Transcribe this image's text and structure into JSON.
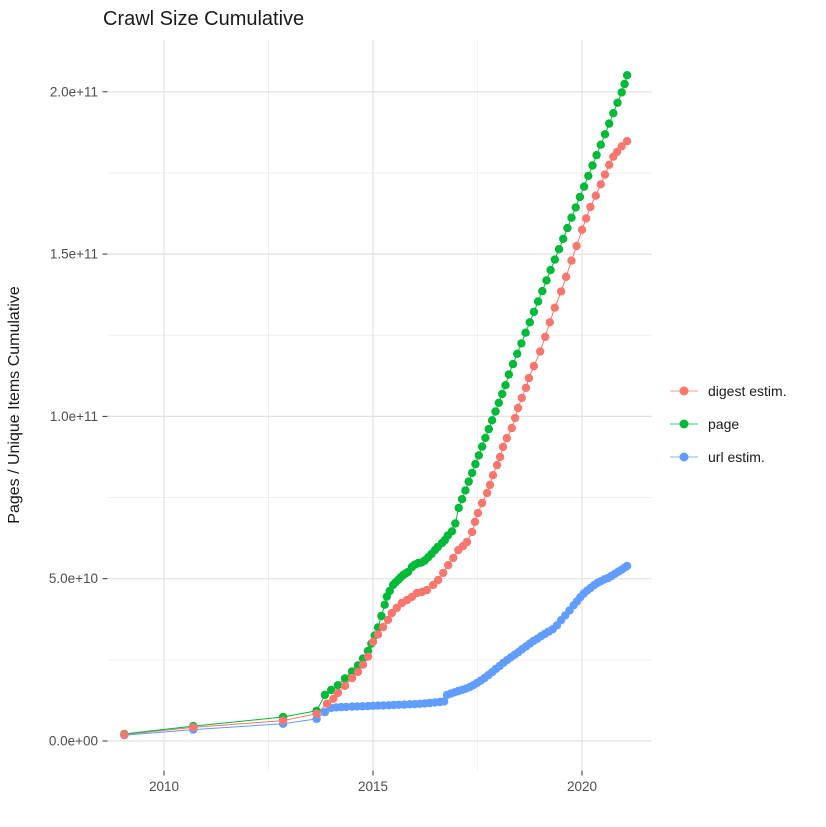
{
  "chart": {
    "title": "Crawl Size Cumulative",
    "y_axis_title": "Pages / Unique Items Cumulative",
    "x_ticks": {
      "major": [
        {
          "label": "2010",
          "year": 2010
        },
        {
          "label": "2015",
          "year": 2015
        },
        {
          "label": "2020",
          "year": 2020
        }
      ],
      "minor_years": [
        2012.5,
        2017.5
      ]
    },
    "y_ticks": {
      "major": [
        {
          "label": "0.0e+00",
          "value_e9": 0
        },
        {
          "label": "5.0e+10",
          "value_e9": 50
        },
        {
          "label": "1.0e+11",
          "value_e9": 100
        },
        {
          "label": "1.5e+11",
          "value_e9": 150
        },
        {
          "label": "2.0e+11",
          "value_e9": 200
        }
      ],
      "minor_values_e9": [
        25,
        75,
        125,
        175
      ]
    },
    "colors": {
      "grid_major": "#e2e2e2",
      "grid_minor": "#efefef",
      "tick_mark": "#333333",
      "tick_label": "#4d4d4d",
      "title_text": "#1a1a1a",
      "legend_text": "#1a1a1a"
    }
  },
  "chart_data": {
    "type": "scatter",
    "note": "cumulative crawl size; x = year, y = items; point values stored as [year, value_in_1e9]",
    "value_unit": "1e9 (billions of pages / unique items)",
    "x_range_years": [
      2008.7,
      2021.7
    ],
    "y_range_e9": [
      0,
      215
    ],
    "legend_position": "right",
    "grid": true,
    "series": [
      {
        "name": "digest estim.",
        "color": "#F8766D",
        "points": [
          [
            2009.05,
            2
          ],
          [
            2010.7,
            4.2
          ],
          [
            2012.85,
            6.3
          ],
          [
            2013.65,
            8.4
          ],
          [
            2013.9,
            11.5
          ],
          [
            2014.05,
            13
          ],
          [
            2014.16,
            14.8
          ],
          [
            2014.33,
            17
          ],
          [
            2014.5,
            19.4
          ],
          [
            2014.64,
            21.3
          ],
          [
            2014.76,
            23.5
          ],
          [
            2014.88,
            26
          ],
          [
            2015.0,
            30.5
          ],
          [
            2015.12,
            32.8
          ],
          [
            2015.24,
            35.1
          ],
          [
            2015.36,
            37.3
          ],
          [
            2015.45,
            39.4
          ],
          [
            2015.57,
            41
          ],
          [
            2015.69,
            42.5
          ],
          [
            2015.81,
            43.4
          ],
          [
            2015.93,
            44.4
          ],
          [
            2016.05,
            45.6
          ],
          [
            2016.17,
            45.9
          ],
          [
            2016.29,
            46.5
          ],
          [
            2016.44,
            48.1
          ],
          [
            2016.56,
            49.6
          ],
          [
            2016.68,
            51.8
          ],
          [
            2016.8,
            54.2
          ],
          [
            2016.92,
            56.4
          ],
          [
            2017.04,
            58.8
          ],
          [
            2017.15,
            60
          ],
          [
            2017.25,
            61.3
          ],
          [
            2017.37,
            64.4
          ],
          [
            2017.44,
            67.5
          ],
          [
            2017.51,
            70.2
          ],
          [
            2017.61,
            73.3
          ],
          [
            2017.73,
            76.4
          ],
          [
            2017.8,
            78.9
          ],
          [
            2017.87,
            81.9
          ],
          [
            2017.97,
            85
          ],
          [
            2018.04,
            87.5
          ],
          [
            2018.11,
            90.6
          ],
          [
            2018.2,
            93.3
          ],
          [
            2018.32,
            96.4
          ],
          [
            2018.4,
            99.5
          ],
          [
            2018.47,
            102.6
          ],
          [
            2018.56,
            105.7
          ],
          [
            2018.66,
            108.8
          ],
          [
            2018.73,
            111.8
          ],
          [
            2018.85,
            115.5
          ],
          [
            2019.0,
            120
          ],
          [
            2019.12,
            124.5
          ],
          [
            2019.23,
            129
          ],
          [
            2019.35,
            133.5
          ],
          [
            2019.5,
            138.5
          ],
          [
            2019.62,
            143
          ],
          [
            2019.75,
            148
          ],
          [
            2019.87,
            152.5
          ],
          [
            2020.0,
            157.5
          ],
          [
            2020.1,
            161
          ],
          [
            2020.2,
            164.5
          ],
          [
            2020.33,
            168
          ],
          [
            2020.45,
            171.5
          ],
          [
            2020.55,
            174.5
          ],
          [
            2020.65,
            177.5
          ],
          [
            2020.75,
            180
          ],
          [
            2020.84,
            181.5
          ],
          [
            2020.95,
            183.2
          ],
          [
            2021.08,
            184.8
          ]
        ]
      },
      {
        "name": "page",
        "color": "#00BA38",
        "points": [
          [
            2009.05,
            2.2
          ],
          [
            2010.7,
            4.6
          ],
          [
            2012.85,
            7.4
          ],
          [
            2013.65,
            9.3
          ],
          [
            2013.85,
            14.2
          ],
          [
            2014.0,
            15.7
          ],
          [
            2014.16,
            17.2
          ],
          [
            2014.33,
            19.3
          ],
          [
            2014.5,
            21.4
          ],
          [
            2014.64,
            23.3
          ],
          [
            2014.76,
            25.4
          ],
          [
            2014.88,
            27.7
          ],
          [
            2014.96,
            30
          ],
          [
            2015.04,
            32.5
          ],
          [
            2015.12,
            35
          ],
          [
            2015.2,
            38.5
          ],
          [
            2015.28,
            42
          ],
          [
            2015.33,
            44.5
          ],
          [
            2015.4,
            46.2
          ],
          [
            2015.48,
            48.1
          ],
          [
            2015.54,
            48.9
          ],
          [
            2015.6,
            49.6
          ],
          [
            2015.66,
            50.4
          ],
          [
            2015.72,
            51.1
          ],
          [
            2015.78,
            51.6
          ],
          [
            2015.84,
            52.1
          ],
          [
            2015.93,
            53.6
          ],
          [
            2016.0,
            54.3
          ],
          [
            2016.08,
            54.8
          ],
          [
            2016.16,
            55
          ],
          [
            2016.24,
            55.6
          ],
          [
            2016.32,
            56.6
          ],
          [
            2016.4,
            57.6
          ],
          [
            2016.48,
            58.8
          ],
          [
            2016.55,
            59.8
          ],
          [
            2016.65,
            61
          ],
          [
            2016.72,
            61.9
          ],
          [
            2016.79,
            63.3
          ],
          [
            2016.89,
            64.6
          ],
          [
            2016.97,
            67
          ],
          [
            2017.05,
            71.8
          ],
          [
            2017.13,
            74.5
          ],
          [
            2017.21,
            77.2
          ],
          [
            2017.29,
            79.9
          ],
          [
            2017.37,
            82.6
          ],
          [
            2017.45,
            85.3
          ],
          [
            2017.53,
            88
          ],
          [
            2017.61,
            90.7
          ],
          [
            2017.69,
            93.4
          ],
          [
            2017.77,
            96.1
          ],
          [
            2017.85,
            98.8
          ],
          [
            2017.93,
            101.5
          ],
          [
            2018.01,
            104.2
          ],
          [
            2018.09,
            106.9
          ],
          [
            2018.17,
            109.6
          ],
          [
            2018.25,
            112.9
          ],
          [
            2018.35,
            116.1
          ],
          [
            2018.45,
            119.3
          ],
          [
            2018.55,
            122.5
          ],
          [
            2018.65,
            125.8
          ],
          [
            2018.75,
            129
          ],
          [
            2018.85,
            132.2
          ],
          [
            2018.95,
            135.4
          ],
          [
            2019.05,
            138.6
          ],
          [
            2019.15,
            141.9
          ],
          [
            2019.25,
            145.1
          ],
          [
            2019.35,
            148.3
          ],
          [
            2019.45,
            151.5
          ],
          [
            2019.55,
            154.7
          ],
          [
            2019.65,
            158
          ],
          [
            2019.75,
            161.2
          ],
          [
            2019.85,
            164.4
          ],
          [
            2019.95,
            167.6
          ],
          [
            2020.05,
            170.8
          ],
          [
            2020.15,
            174.1
          ],
          [
            2020.25,
            177.3
          ],
          [
            2020.35,
            180.5
          ],
          [
            2020.45,
            183.7
          ],
          [
            2020.55,
            186.9
          ],
          [
            2020.65,
            190.2
          ],
          [
            2020.75,
            193.4
          ],
          [
            2020.85,
            196.6
          ],
          [
            2020.95,
            199.8
          ],
          [
            2021.02,
            202.4
          ],
          [
            2021.08,
            205.1
          ]
        ]
      },
      {
        "name": "url estim.",
        "color": "#619CFF",
        "points": [
          [
            2009.05,
            1.8
          ],
          [
            2010.7,
            3.5
          ],
          [
            2012.85,
            5.3
          ],
          [
            2013.65,
            6.8
          ],
          [
            2013.85,
            8.9
          ],
          [
            2014.0,
            10.2
          ],
          [
            2014.12,
            10.35
          ],
          [
            2014.24,
            10.45
          ],
          [
            2014.36,
            10.5
          ],
          [
            2014.5,
            10.6
          ],
          [
            2014.62,
            10.65
          ],
          [
            2014.75,
            10.7
          ],
          [
            2014.88,
            10.75
          ],
          [
            2015.0,
            10.85
          ],
          [
            2015.12,
            10.9
          ],
          [
            2015.25,
            10.95
          ],
          [
            2015.38,
            11
          ],
          [
            2015.5,
            11.1
          ],
          [
            2015.62,
            11.15
          ],
          [
            2015.75,
            11.2
          ],
          [
            2015.88,
            11.3
          ],
          [
            2016.0,
            11.35
          ],
          [
            2016.12,
            11.45
          ],
          [
            2016.24,
            11.55
          ],
          [
            2016.36,
            11.7
          ],
          [
            2016.48,
            11.85
          ],
          [
            2016.6,
            12
          ],
          [
            2016.7,
            12.2
          ],
          [
            2016.77,
            14.2
          ],
          [
            2016.86,
            14.6
          ],
          [
            2016.95,
            15
          ],
          [
            2017.04,
            15.4
          ],
          [
            2017.13,
            15.7
          ],
          [
            2017.22,
            16.1
          ],
          [
            2017.31,
            16.6
          ],
          [
            2017.4,
            17.2
          ],
          [
            2017.49,
            17.9
          ],
          [
            2017.58,
            18.6
          ],
          [
            2017.67,
            19.4
          ],
          [
            2017.76,
            20.3
          ],
          [
            2017.85,
            21.2
          ],
          [
            2017.94,
            22.2
          ],
          [
            2018.03,
            23.1
          ],
          [
            2018.12,
            24.1
          ],
          [
            2018.21,
            25
          ],
          [
            2018.3,
            25.8
          ],
          [
            2018.39,
            26.6
          ],
          [
            2018.48,
            27.4
          ],
          [
            2018.57,
            28.3
          ],
          [
            2018.66,
            29.1
          ],
          [
            2018.75,
            30
          ],
          [
            2018.84,
            30.8
          ],
          [
            2018.93,
            31.5
          ],
          [
            2019.02,
            32.3
          ],
          [
            2019.11,
            33
          ],
          [
            2019.2,
            33.7
          ],
          [
            2019.3,
            34.4
          ],
          [
            2019.4,
            35.6
          ],
          [
            2019.5,
            37.2
          ],
          [
            2019.6,
            38.7
          ],
          [
            2019.7,
            40.2
          ],
          [
            2019.8,
            41.8
          ],
          [
            2019.88,
            43
          ],
          [
            2019.96,
            44.3
          ],
          [
            2020.04,
            45.4
          ],
          [
            2020.12,
            46.3
          ],
          [
            2020.2,
            47.1
          ],
          [
            2020.29,
            48
          ],
          [
            2020.37,
            48.7
          ],
          [
            2020.45,
            49.2
          ],
          [
            2020.54,
            49.8
          ],
          [
            2020.62,
            50.2
          ],
          [
            2020.7,
            50.8
          ],
          [
            2020.79,
            51.5
          ],
          [
            2020.87,
            52.2
          ],
          [
            2020.95,
            52.8
          ],
          [
            2021.02,
            53.4
          ],
          [
            2021.08,
            53.9
          ]
        ]
      }
    ]
  }
}
